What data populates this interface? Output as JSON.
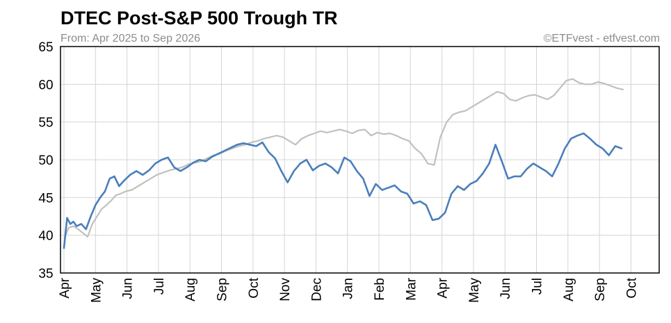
{
  "header": {
    "title": "DTEC Post-S&P 500 Trough TR",
    "subtitle": "From: Apr 2025 to Sep 2026",
    "credit": "©ETFvest - etfvest.com"
  },
  "colors": {
    "series_primary": "#4a7ebb",
    "series_benchmark": "#c0c0c0",
    "grid": "#d4d4d4",
    "frame": "#000000"
  },
  "chart_data": {
    "type": "line",
    "title": "DTEC Post-S&P 500 Trough TR",
    "subtitle": "From: Apr 2025 to Sep 2026",
    "ylim": [
      35,
      65
    ],
    "yticks": [
      35,
      40,
      45,
      50,
      55,
      60,
      65
    ],
    "x_tick_labels": [
      "Apr",
      "May",
      "Jun",
      "Jul",
      "Aug",
      "Sep",
      "Oct",
      "Nov",
      "Dec",
      "Jan",
      "Feb",
      "Mar",
      "Apr",
      "May",
      "Jun",
      "Jul",
      "Aug",
      "Sep",
      "Oct"
    ],
    "xlim": [
      0,
      18.5
    ],
    "grid": true,
    "legend": "none",
    "series": [
      {
        "role": "primary",
        "color": "#4a7ebb",
        "x": [
          0.0,
          0.1,
          0.2,
          0.3,
          0.4,
          0.55,
          0.7,
          0.85,
          1.0,
          1.15,
          1.3,
          1.45,
          1.6,
          1.75,
          1.9,
          2.1,
          2.3,
          2.5,
          2.7,
          2.9,
          3.1,
          3.3,
          3.5,
          3.7,
          3.9,
          4.1,
          4.3,
          4.5,
          4.7,
          4.9,
          5.1,
          5.3,
          5.5,
          5.7,
          5.9,
          6.1,
          6.3,
          6.5,
          6.7,
          6.9,
          7.1,
          7.3,
          7.5,
          7.7,
          7.9,
          8.1,
          8.3,
          8.5,
          8.7,
          8.9,
          9.1,
          9.3,
          9.5,
          9.7,
          9.9,
          10.1,
          10.3,
          10.5,
          10.7,
          10.9,
          11.1,
          11.3,
          11.5,
          11.7,
          11.9,
          12.1,
          12.3,
          12.5,
          12.7,
          12.9,
          13.1,
          13.3,
          13.5,
          13.7,
          13.9,
          14.1,
          14.3,
          14.5,
          14.7,
          14.9,
          15.1,
          15.3,
          15.5,
          15.7,
          15.9,
          16.1,
          16.3,
          16.5,
          16.7,
          16.9,
          17.1,
          17.3,
          17.5,
          17.7
        ],
        "values": [
          38.3,
          42.3,
          41.5,
          41.8,
          41.2,
          41.5,
          40.8,
          42.5,
          44.0,
          45.0,
          45.8,
          47.5,
          47.8,
          46.5,
          47.2,
          48.0,
          48.5,
          48.0,
          48.6,
          49.5,
          50.0,
          50.3,
          49.0,
          48.5,
          49.0,
          49.6,
          50.0,
          49.8,
          50.4,
          50.8,
          51.2,
          51.6,
          52.0,
          52.2,
          52.0,
          51.8,
          52.3,
          51.0,
          50.2,
          48.5,
          47.0,
          48.5,
          49.5,
          50.0,
          48.6,
          49.2,
          49.5,
          49.0,
          48.2,
          50.3,
          49.8,
          48.5,
          47.5,
          45.2,
          46.8,
          46.0,
          46.3,
          46.6,
          45.8,
          45.5,
          44.2,
          44.5,
          44.0,
          42.0,
          42.2,
          43.0,
          45.5,
          46.5,
          46.0,
          46.8,
          47.2,
          48.2,
          49.5,
          52.0,
          49.8,
          47.5,
          47.8,
          47.8,
          48.8,
          49.5,
          49.0,
          48.5,
          47.8,
          49.5,
          51.5,
          52.8,
          53.2,
          53.5,
          52.8,
          52.0,
          51.5,
          50.6,
          51.8,
          51.5
        ]
      },
      {
        "role": "benchmark",
        "color": "#c0c0c0",
        "x": [
          0.05,
          0.15,
          0.3,
          0.45,
          0.6,
          0.75,
          0.9,
          1.05,
          1.2,
          1.35,
          1.5,
          1.65,
          1.8,
          1.95,
          2.15,
          2.35,
          2.55,
          2.75,
          2.95,
          3.15,
          3.35,
          3.55,
          3.75,
          3.95,
          4.15,
          4.35,
          4.55,
          4.75,
          4.95,
          5.15,
          5.35,
          5.55,
          5.75,
          5.95,
          6.15,
          6.35,
          6.55,
          6.75,
          6.95,
          7.15,
          7.35,
          7.55,
          7.75,
          7.95,
          8.15,
          8.35,
          8.55,
          8.75,
          8.95,
          9.15,
          9.35,
          9.55,
          9.75,
          9.95,
          10.15,
          10.35,
          10.55,
          10.75,
          10.95,
          11.15,
          11.35,
          11.55,
          11.75,
          11.95,
          12.15,
          12.35,
          12.55,
          12.75,
          12.95,
          13.15,
          13.35,
          13.55,
          13.75,
          13.95,
          14.15,
          14.35,
          14.55,
          14.75,
          14.95,
          15.15,
          15.35,
          15.55,
          15.75,
          15.95,
          16.15,
          16.35,
          16.55,
          16.75,
          16.95,
          17.15,
          17.35,
          17.55,
          17.75
        ],
        "values": [
          40.0,
          41.0,
          41.2,
          40.8,
          40.3,
          39.8,
          41.5,
          42.5,
          43.5,
          44.0,
          44.6,
          45.3,
          45.5,
          45.8,
          46.0,
          46.5,
          47.0,
          47.5,
          48.0,
          48.3,
          48.6,
          48.8,
          49.0,
          49.4,
          49.6,
          49.8,
          50.2,
          50.6,
          50.8,
          51.2,
          51.5,
          51.8,
          52.0,
          52.3,
          52.5,
          52.8,
          53.0,
          53.2,
          53.0,
          52.5,
          52.0,
          52.8,
          53.2,
          53.5,
          53.8,
          53.6,
          53.8,
          54.0,
          53.8,
          53.5,
          53.9,
          54.0,
          53.2,
          53.6,
          53.4,
          53.5,
          53.2,
          52.8,
          52.5,
          51.5,
          50.8,
          49.5,
          49.3,
          53.0,
          55.0,
          56.0,
          56.3,
          56.5,
          57.0,
          57.5,
          58.0,
          58.5,
          59.0,
          58.8,
          58.0,
          57.8,
          58.2,
          58.5,
          58.6,
          58.3,
          58.0,
          58.5,
          59.5,
          60.5,
          60.7,
          60.2,
          60.0,
          60.0,
          60.3,
          60.1,
          59.8,
          59.5,
          59.3
        ]
      }
    ]
  }
}
